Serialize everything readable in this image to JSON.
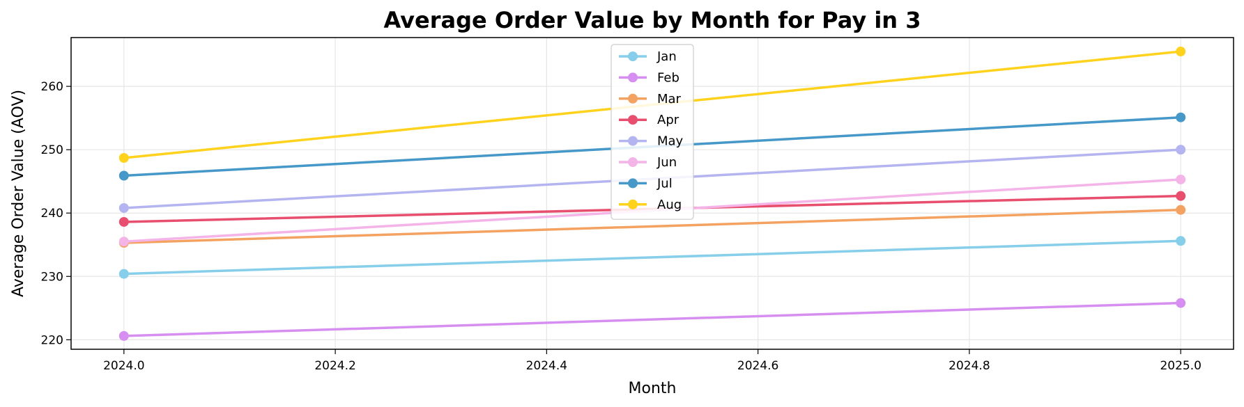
{
  "chart_data": {
    "type": "line",
    "title": "Average Order Value by Month for Pay in 3",
    "xlabel": "Month",
    "ylabel": "Average Order Value (AOV)",
    "x": [
      2024.0,
      2025.0
    ],
    "xlim": [
      2023.95,
      2025.05
    ],
    "ylim": [
      218.5,
      267.7
    ],
    "xticks": [
      2024.0,
      2024.2,
      2024.4,
      2024.6,
      2024.8,
      2025.0
    ],
    "xtick_labels": [
      "2024.0",
      "2024.2",
      "2024.4",
      "2024.6",
      "2024.8",
      "2025.0"
    ],
    "yticks": [
      220,
      230,
      240,
      250,
      260
    ],
    "ytick_labels": [
      "220",
      "230",
      "240",
      "250",
      "260"
    ],
    "grid": true,
    "legend_position": "top-center",
    "series": [
      {
        "name": "Jan",
        "color": "#87ceeb",
        "values": [
          230.4,
          235.6
        ]
      },
      {
        "name": "Feb",
        "color": "#d68ff0",
        "values": [
          220.6,
          225.8
        ]
      },
      {
        "name": "Mar",
        "color": "#f4a261",
        "values": [
          235.3,
          240.5
        ]
      },
      {
        "name": "Apr",
        "color": "#e84f6e",
        "values": [
          238.6,
          242.7
        ]
      },
      {
        "name": "May",
        "color": "#b4b4f0",
        "values": [
          240.8,
          250.0
        ]
      },
      {
        "name": "Jun",
        "color": "#f4b4e8",
        "values": [
          235.5,
          245.3
        ]
      },
      {
        "name": "Jul",
        "color": "#4698c8",
        "values": [
          245.9,
          255.1
        ]
      },
      {
        "name": "Aug",
        "color": "#ffd21e",
        "values": [
          248.7,
          265.5
        ]
      }
    ]
  }
}
